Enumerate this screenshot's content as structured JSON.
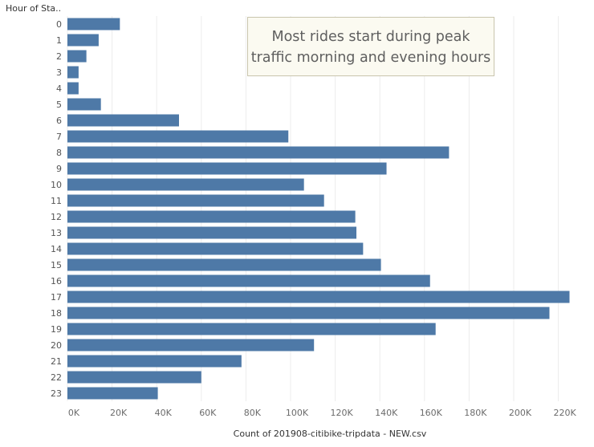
{
  "chart_data": {
    "type": "bar",
    "orientation": "horizontal",
    "row_header": "Hour of Sta..",
    "xlabel": "Count of 201908-citibike-tripdata - NEW.csv",
    "xlim": [
      0,
      230000
    ],
    "x_ticks": [
      "0K",
      "20K",
      "40K",
      "60K",
      "80K",
      "100K",
      "120K",
      "140K",
      "160K",
      "180K",
      "200K",
      "220K"
    ],
    "x_tick_values": [
      0,
      20000,
      40000,
      60000,
      80000,
      100000,
      120000,
      140000,
      160000,
      180000,
      200000,
      220000
    ],
    "grid": "vertical",
    "bar_color": "#4e79a7",
    "categories": [
      "0",
      "1",
      "2",
      "3",
      "4",
      "5",
      "6",
      "7",
      "8",
      "9",
      "10",
      "11",
      "12",
      "13",
      "14",
      "15",
      "16",
      "17",
      "18",
      "19",
      "20",
      "21",
      "22",
      "23"
    ],
    "values": [
      23500,
      14000,
      8500,
      5000,
      5000,
      15000,
      50000,
      99000,
      171000,
      143000,
      106000,
      115000,
      129000,
      129500,
      132500,
      140500,
      162500,
      225000,
      216000,
      165000,
      110500,
      78000,
      60000,
      40500
    ],
    "annotation": {
      "line1": "Most rides start during peak",
      "line2": "traffic morning and evening hours"
    }
  }
}
